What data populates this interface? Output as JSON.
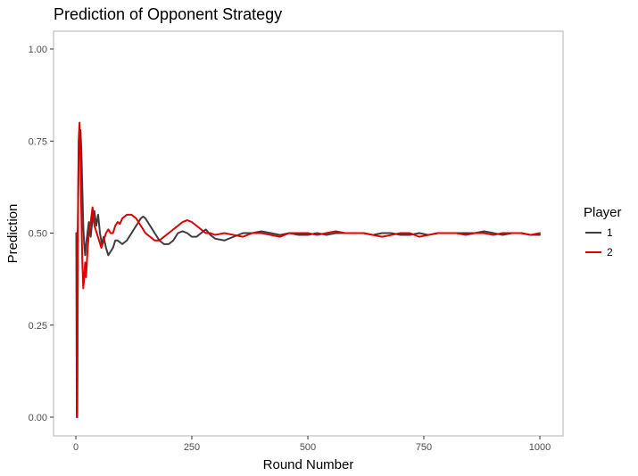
{
  "chart_data": {
    "type": "line",
    "title": "Prediction of Opponent Strategy",
    "xlabel": "Round Number",
    "ylabel": "Prediction",
    "xlim": [
      0,
      1000
    ],
    "ylim": [
      0,
      1
    ],
    "xticks": [
      0,
      250,
      500,
      750,
      1000
    ],
    "xtick_labels": [
      "0",
      "250",
      "500",
      "750",
      "1000"
    ],
    "yticks": [
      0,
      0.25,
      0.5,
      0.75,
      1
    ],
    "ytick_labels": [
      "0.00",
      "0.25",
      "0.50",
      "0.75",
      "1.00"
    ],
    "grid": false,
    "legend": {
      "title": "Player",
      "placement": "right"
    },
    "series": [
      {
        "name": "1",
        "color": "#3d3d3d",
        "x": [
          1,
          2,
          3,
          4,
          5,
          6,
          8,
          10,
          12,
          14,
          16,
          18,
          20,
          22,
          25,
          28,
          32,
          36,
          40,
          44,
          48,
          52,
          56,
          60,
          65,
          70,
          75,
          80,
          85,
          90,
          100,
          110,
          120,
          130,
          140,
          145,
          150,
          160,
          170,
          180,
          190,
          200,
          210,
          220,
          230,
          240,
          250,
          260,
          270,
          280,
          290,
          300,
          320,
          340,
          360,
          380,
          400,
          420,
          440,
          460,
          480,
          500,
          520,
          540,
          560,
          580,
          600,
          620,
          640,
          660,
          680,
          700,
          720,
          740,
          760,
          780,
          800,
          820,
          840,
          860,
          880,
          900,
          920,
          940,
          960,
          980,
          1000
        ],
        "y": [
          0.5,
          0.0,
          0.0,
          0.5,
          0.6,
          0.7,
          0.75,
          0.78,
          0.72,
          0.62,
          0.52,
          0.47,
          0.44,
          0.47,
          0.5,
          0.53,
          0.49,
          0.54,
          0.56,
          0.52,
          0.55,
          0.5,
          0.47,
          0.49,
          0.46,
          0.44,
          0.45,
          0.46,
          0.48,
          0.48,
          0.47,
          0.48,
          0.5,
          0.52,
          0.54,
          0.545,
          0.54,
          0.52,
          0.5,
          0.48,
          0.47,
          0.47,
          0.48,
          0.5,
          0.505,
          0.5,
          0.49,
          0.49,
          0.5,
          0.51,
          0.495,
          0.485,
          0.48,
          0.49,
          0.5,
          0.5,
          0.505,
          0.5,
          0.495,
          0.5,
          0.495,
          0.495,
          0.5,
          0.495,
          0.5,
          0.5,
          0.5,
          0.5,
          0.495,
          0.5,
          0.5,
          0.495,
          0.495,
          0.5,
          0.495,
          0.5,
          0.5,
          0.5,
          0.5,
          0.5,
          0.505,
          0.5,
          0.495,
          0.5,
          0.5,
          0.495,
          0.495
        ]
      },
      {
        "name": "2",
        "color": "#dd0000",
        "x": [
          1,
          2,
          3,
          4,
          5,
          6,
          8,
          10,
          12,
          14,
          16,
          18,
          20,
          22,
          25,
          28,
          32,
          36,
          40,
          45,
          50,
          55,
          60,
          65,
          70,
          75,
          80,
          85,
          90,
          95,
          100,
          110,
          120,
          130,
          140,
          150,
          160,
          170,
          180,
          190,
          200,
          210,
          220,
          230,
          240,
          250,
          260,
          270,
          280,
          290,
          300,
          320,
          340,
          360,
          380,
          400,
          420,
          440,
          460,
          480,
          500,
          520,
          540,
          560,
          580,
          600,
          620,
          640,
          660,
          680,
          700,
          720,
          740,
          760,
          780,
          800,
          820,
          840,
          860,
          880,
          900,
          920,
          940,
          960,
          980,
          1000
        ],
        "y": [
          0.5,
          0.5,
          0.0,
          0.3,
          0.6,
          0.75,
          0.8,
          0.7,
          0.55,
          0.42,
          0.35,
          0.38,
          0.42,
          0.38,
          0.45,
          0.5,
          0.53,
          0.57,
          0.52,
          0.5,
          0.48,
          0.46,
          0.48,
          0.5,
          0.51,
          0.5,
          0.5,
          0.52,
          0.53,
          0.525,
          0.54,
          0.55,
          0.55,
          0.54,
          0.52,
          0.5,
          0.49,
          0.48,
          0.48,
          0.49,
          0.5,
          0.51,
          0.52,
          0.53,
          0.535,
          0.53,
          0.52,
          0.51,
          0.5,
          0.5,
          0.495,
          0.5,
          0.495,
          0.49,
          0.5,
          0.5,
          0.495,
          0.49,
          0.5,
          0.5,
          0.5,
          0.495,
          0.5,
          0.505,
          0.5,
          0.5,
          0.5,
          0.495,
          0.49,
          0.495,
          0.5,
          0.5,
          0.49,
          0.495,
          0.5,
          0.5,
          0.5,
          0.495,
          0.5,
          0.5,
          0.495,
          0.5,
          0.5,
          0.5,
          0.495,
          0.5
        ]
      }
    ]
  }
}
